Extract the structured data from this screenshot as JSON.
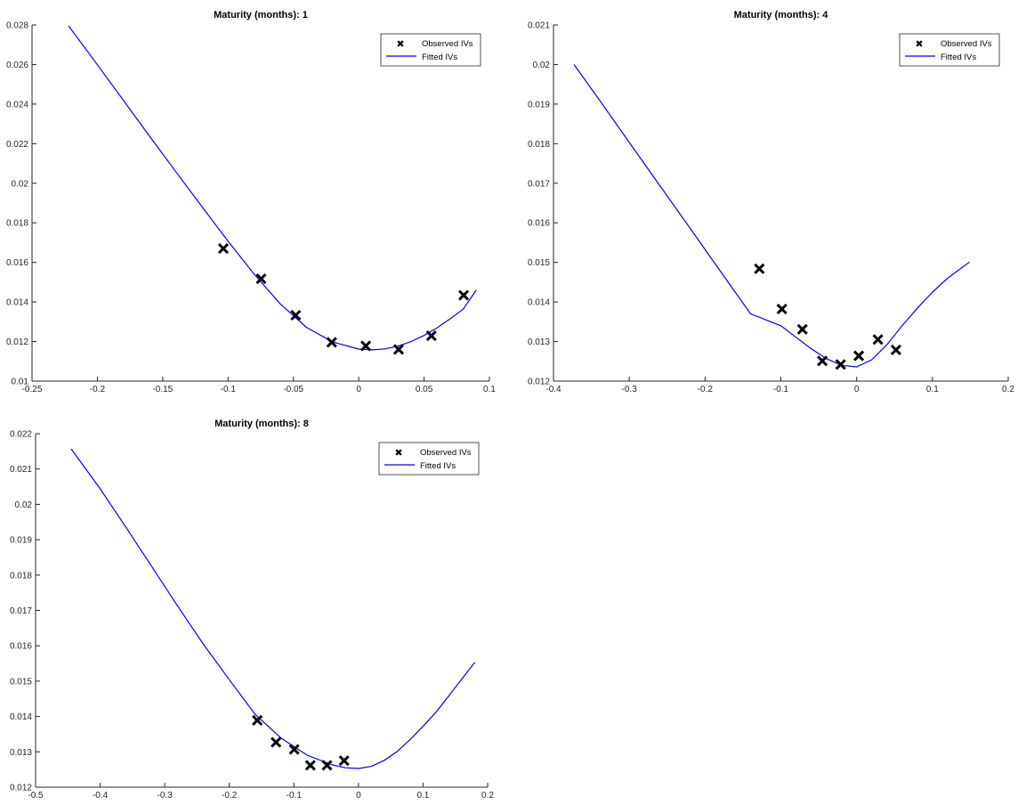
{
  "colors": {
    "fitted": "#0000ff",
    "observed": "#000000",
    "axis": "#262626"
  },
  "chart_data": [
    {
      "type": "scatter+line",
      "title": "Maturity (months): 1",
      "xlim": [
        -0.25,
        0.1
      ],
      "ylim": [
        0.01,
        0.028
      ],
      "xticks": [
        -0.25,
        -0.2,
        -0.15,
        -0.1,
        -0.05,
        0,
        0.05,
        0.1
      ],
      "xtick_labels": [
        "-0.25",
        "-0.2",
        "-0.15",
        "-0.1",
        "-0.05",
        "0",
        "0.05",
        "0.1"
      ],
      "yticks": [
        0.01,
        0.012,
        0.014,
        0.016,
        0.018,
        0.02,
        0.022,
        0.024,
        0.026,
        0.028
      ],
      "ytick_labels": [
        "0.01",
        "0.012",
        "0.014",
        "0.016",
        "0.018",
        "0.02",
        "0.022",
        "0.024",
        "0.026",
        "0.028"
      ],
      "legend": {
        "position": "top-right",
        "entries": [
          "Observed IVs",
          "Fitted IVs"
        ]
      },
      "series": [
        {
          "name": "Observed IVs",
          "kind": "scatter",
          "x": [
            -0.1036,
            -0.0747,
            -0.0482,
            -0.0207,
            0.0054,
            0.0305,
            0.0556,
            0.0803
          ],
          "y": [
            0.0167,
            0.01517,
            0.01333,
            0.01196,
            0.01178,
            0.0116,
            0.01229,
            0.01434
          ]
        },
        {
          "name": "Fitted IVs",
          "kind": "line",
          "x": [
            -0.222,
            -0.2,
            -0.18,
            -0.16,
            -0.14,
            -0.12,
            -0.1,
            -0.08,
            -0.06,
            -0.04,
            -0.02,
            0,
            0.01,
            0.02,
            0.03,
            0.04,
            0.05,
            0.06,
            0.07,
            0.08,
            0.09
          ],
          "y": [
            0.02795,
            0.02599,
            0.02418,
            0.02237,
            0.02059,
            0.01882,
            0.01707,
            0.0154,
            0.0139,
            0.01272,
            0.01198,
            0.01162,
            0.01158,
            0.01163,
            0.01177,
            0.012,
            0.01231,
            0.0127,
            0.01315,
            0.01364,
            0.01461
          ]
        }
      ]
    },
    {
      "type": "scatter+line",
      "title": "Maturity (months): 4",
      "xlim": [
        -0.4,
        0.2
      ],
      "ylim": [
        0.012,
        0.021
      ],
      "xticks": [
        -0.4,
        -0.3,
        -0.2,
        -0.1,
        0,
        0.1,
        0.2
      ],
      "xtick_labels": [
        "-0.4",
        "-0.3",
        "-0.2",
        "-0.1",
        "0",
        "0.1",
        "0.2"
      ],
      "yticks": [
        0.012,
        0.013,
        0.014,
        0.015,
        0.016,
        0.017,
        0.018,
        0.019,
        0.02,
        0.021
      ],
      "ytick_labels": [
        "0.012",
        "0.013",
        "0.014",
        "0.015",
        "0.016",
        "0.017",
        "0.018",
        "0.019",
        "0.02",
        "0.021"
      ],
      "legend": {
        "position": "top-right",
        "entries": [
          "Observed IVs",
          "Fitted IVs"
        ]
      },
      "series": [
        {
          "name": "Observed IVs",
          "kind": "scatter",
          "x": [
            -0.1284,
            -0.0986,
            -0.0716,
            -0.0453,
            -0.0211,
            0.0028,
            0.0281,
            0.0519
          ],
          "y": [
            0.01484,
            0.01382,
            0.01331,
            0.01251,
            0.01242,
            0.01264,
            0.01305,
            0.01279
          ]
        },
        {
          "name": "Fitted IVs",
          "kind": "line",
          "x": [
            -0.373,
            -0.34,
            -0.3,
            -0.26,
            -0.22,
            -0.18,
            -0.14,
            -0.1,
            -0.08,
            -0.06,
            -0.04,
            -0.02,
            0,
            0.02,
            0.04,
            0.06,
            0.08,
            0.1,
            0.12,
            0.149
          ],
          "y": [
            0.02,
            0.01912,
            0.01803,
            0.01695,
            0.01587,
            0.01478,
            0.0137,
            0.0134,
            0.01311,
            0.01282,
            0.01257,
            0.0124,
            0.01236,
            0.01254,
            0.01292,
            0.0134,
            0.01384,
            0.01425,
            0.0146,
            0.01501
          ]
        }
      ]
    },
    {
      "type": "scatter+line",
      "title": "Maturity (months): 8",
      "xlim": [
        -0.5,
        0.2
      ],
      "ylim": [
        0.012,
        0.022
      ],
      "xticks": [
        -0.5,
        -0.4,
        -0.3,
        -0.2,
        -0.1,
        0,
        0.1,
        0.2
      ],
      "xtick_labels": [
        "-0.5",
        "-0.4",
        "-0.3",
        "-0.2",
        "-0.1",
        "0",
        "0.1",
        "0.2"
      ],
      "yticks": [
        0.012,
        0.013,
        0.014,
        0.015,
        0.016,
        0.017,
        0.018,
        0.019,
        0.02,
        0.021,
        0.022
      ],
      "ytick_labels": [
        "0.012",
        "0.013",
        "0.014",
        "0.015",
        "0.016",
        "0.017",
        "0.018",
        "0.019",
        "0.02",
        "0.021",
        "0.022"
      ],
      "legend": {
        "position": "top-right",
        "entries": [
          "Observed IVs",
          "Fitted IVs"
        ]
      },
      "series": [
        {
          "name": "Observed IVs",
          "kind": "scatter",
          "x": [
            -0.1567,
            -0.1277,
            -0.0995,
            -0.0745,
            -0.0487,
            -0.0223
          ],
          "y": [
            0.01389,
            0.01327,
            0.01307,
            0.01262,
            0.01262,
            0.01275
          ]
        },
        {
          "name": "Fitted IVs",
          "kind": "line",
          "x": [
            -0.445,
            -0.4,
            -0.36,
            -0.32,
            -0.28,
            -0.24,
            -0.2,
            -0.16,
            -0.12,
            -0.08,
            -0.04,
            -0.02,
            0,
            0.02,
            0.04,
            0.06,
            0.08,
            0.1,
            0.12,
            0.14,
            0.16,
            0.18
          ],
          "y": [
            0.02157,
            0.02044,
            0.01935,
            0.01824,
            0.01712,
            0.01604,
            0.01504,
            0.01406,
            0.01339,
            0.01291,
            0.01263,
            0.01255,
            0.01253,
            0.01259,
            0.01276,
            0.01301,
            0.01335,
            0.01372,
            0.01412,
            0.01459,
            0.01506,
            0.01553
          ]
        }
      ]
    }
  ]
}
